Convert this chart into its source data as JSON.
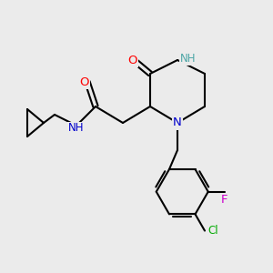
{
  "bg_color": "#ebebeb",
  "atom_colors": {
    "C": "#000000",
    "N": "#0000cc",
    "NH": "#0000cc",
    "NH_ring": "#4da6a6",
    "O": "#ff0000",
    "Cl": "#00aa00",
    "F": "#cc00cc",
    "H": "#7fbfbf"
  },
  "bond_color": "#000000",
  "bond_width": 1.5
}
